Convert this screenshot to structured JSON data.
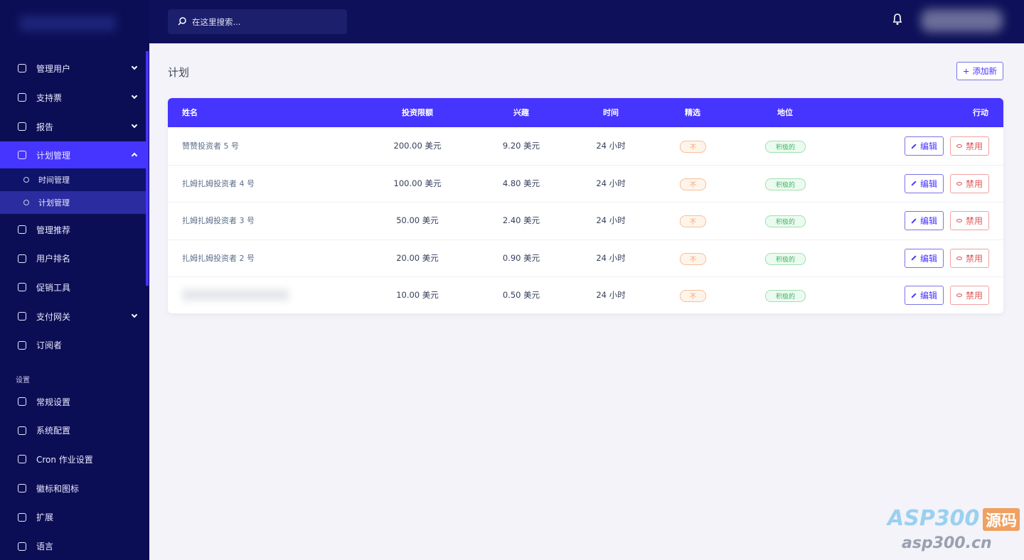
{
  "search": {
    "placeholder": "在这里搜索..."
  },
  "sidebar": {
    "menu": [
      "管理用户",
      "支持票",
      "报告",
      "计划管理"
    ],
    "submenu": [
      "时间管理",
      "计划管理"
    ],
    "menu2": [
      "管理推荐",
      "用户排名",
      "促销工具",
      "支付网关",
      "订阅者"
    ],
    "section": "设置",
    "settings": [
      "常规设置",
      "系统配置",
      "Cron 作业设置",
      "徽标和图标",
      "扩展",
      "语言"
    ]
  },
  "page": {
    "title": "计划",
    "add_button": "添加新"
  },
  "table": {
    "headers": [
      "姓名",
      "投资限额",
      "兴趣",
      "时间",
      "精选",
      "地位",
      "行动"
    ],
    "rows": [
      [
        "赞赞投资者 5 号",
        "200.00 美元",
        "9.20 美元",
        "24 小时",
        "不",
        "积极的",
        "编辑",
        "禁用"
      ],
      [
        "扎姆扎姆投资者 4 号",
        "100.00 美元",
        "4.80 美元",
        "24 小时",
        "不",
        "积极的",
        "编辑",
        "禁用"
      ],
      [
        "扎姆扎姆投资者 3 号",
        "50.00 美元",
        "2.40 美元",
        "24 小时",
        "不",
        "积极的",
        "编辑",
        "禁用"
      ],
      [
        "扎姆扎姆投资者 2 号",
        "20.00 美元",
        "0.90 美元",
        "24 小时",
        "不",
        "积极的",
        "编辑",
        "禁用"
      ],
      [
        null,
        "10.00 美元",
        "0.50 美元",
        "24 小时",
        "不",
        "积极的",
        "编辑",
        "禁用"
      ]
    ]
  },
  "watermark": {
    "brand": "ASP300",
    "tag": "源码",
    "url": "asp300.cn"
  }
}
